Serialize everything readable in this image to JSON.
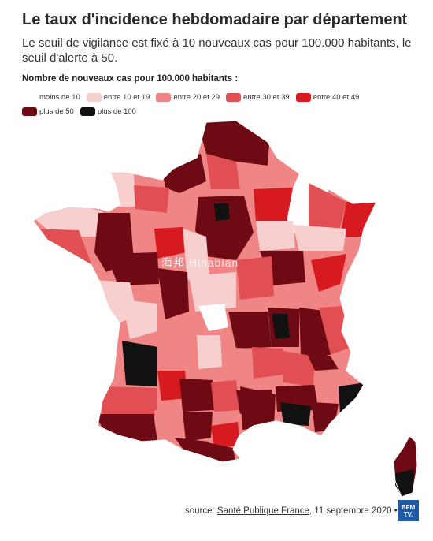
{
  "title": "Le taux d'incidence hebdomadaire par département",
  "subtitle": "Le seuil de vigilance est fixé à 10 nouveaux cas pour 100.000 habitants, le seuil d'alerte à 50.",
  "legend": {
    "title": "Nombre de nouveaux cas pour 100.000 habitants :",
    "items": [
      {
        "label": "moins de 10",
        "color": "#ffffff"
      },
      {
        "label": "entre 10 et 19",
        "color": "#f7cfcf"
      },
      {
        "label": "entre 20 et 29",
        "color": "#ef8585"
      },
      {
        "label": "entre 30 et 39",
        "color": "#e24f52"
      },
      {
        "label": "entre 40 et 49",
        "color": "#d71a1f"
      },
      {
        "label": "plus de 50",
        "color": "#6e0a14"
      },
      {
        "label": "plus de 100",
        "color": "#111111"
      }
    ]
  },
  "watermark": "海邦 Hinabian",
  "source": {
    "prefix": "source: ",
    "link": "Santé Publique France",
    "suffix": ", 11 septembre 2020 •"
  },
  "logo": {
    "line1": "BFM",
    "line2": "TV."
  }
}
